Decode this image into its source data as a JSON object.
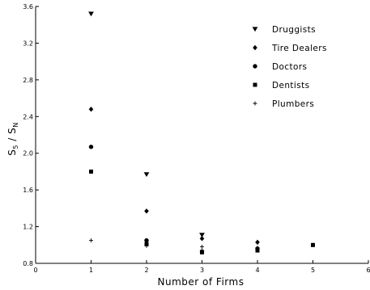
{
  "chart_data": {
    "type": "scatter",
    "title": "",
    "xlabel": "Number of Firms",
    "ylabel": "S5 / SN",
    "ylabel_parts": {
      "main": "S",
      "sub1": "5",
      "sep": " / ",
      "main2": "S",
      "sub2": "N"
    },
    "xlim": [
      0,
      6
    ],
    "ylim": [
      0.8,
      3.6
    ],
    "x_ticks": [
      0,
      1,
      2,
      3,
      4,
      5,
      6
    ],
    "y_ticks": [
      0.8,
      1.2,
      1.6,
      2.0,
      2.4,
      2.8,
      3.2,
      3.6
    ],
    "x_tick_labels": [
      "0",
      "1",
      "2",
      "3",
      "4",
      "5",
      "6"
    ],
    "y_tick_labels": [
      "0.8",
      "1.2",
      "1.6",
      "2.0",
      "2.4",
      "2.8",
      "3.2",
      "3.6"
    ],
    "grid": false,
    "legend_position": "top-right",
    "series": [
      {
        "name": "Druggists",
        "marker": "triangle-down",
        "points": [
          [
            1,
            3.52
          ],
          [
            2,
            1.77
          ],
          [
            3,
            1.11
          ]
        ]
      },
      {
        "name": "Tire Dealers",
        "marker": "diamond",
        "points": [
          [
            1,
            2.48
          ],
          [
            2,
            1.37
          ],
          [
            3,
            1.07
          ],
          [
            4,
            1.03
          ]
        ]
      },
      {
        "name": "Doctors",
        "marker": "circle",
        "points": [
          [
            1,
            2.07
          ],
          [
            2,
            1.05
          ],
          [
            3,
            0.93
          ],
          [
            4,
            0.96
          ]
        ]
      },
      {
        "name": "Dentists",
        "marker": "square",
        "points": [
          [
            1,
            1.8
          ],
          [
            2,
            1.01
          ],
          [
            3,
            0.92
          ],
          [
            4,
            0.94
          ],
          [
            5,
            1.0
          ]
        ]
      },
      {
        "name": "Plumbers",
        "marker": "plus",
        "points": [
          [
            1,
            1.05
          ],
          [
            2,
            0.99
          ],
          [
            3,
            0.98
          ],
          [
            4,
            0.97
          ],
          [
            5,
            1.0
          ]
        ]
      }
    ]
  }
}
